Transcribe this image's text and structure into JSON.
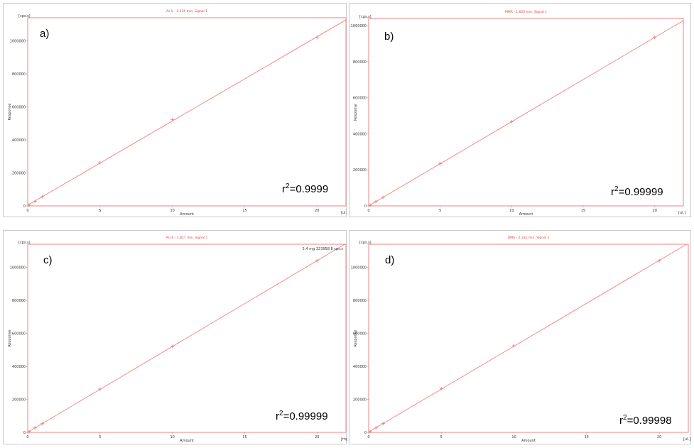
{
  "colors": {
    "plot_line": "#f08080",
    "frame": "#f08080",
    "title": "#e04040"
  },
  "chart_data": [
    {
      "type": "line",
      "panel_label": "a)",
      "title": "As V - 1.226 min, Signal 1",
      "xlabel": "Amount",
      "ylabel": "Response",
      "x_unit": "[ul.]",
      "y_unit": "[cps.s]",
      "xlim": [
        0,
        22
      ],
      "ylim": [
        0,
        1140000
      ],
      "xticks": [
        0,
        5,
        10,
        15,
        20
      ],
      "yticks": [
        0,
        200000,
        400000,
        600000,
        800000,
        1000000
      ],
      "grid": false,
      "annotation": "",
      "r2_base": "r",
      "r2_sup": "2",
      "r2_value": "=0.9999",
      "series": [
        {
          "x": [
            0.1,
            0.5,
            1,
            5,
            10,
            20
          ],
          "y": [
            5000,
            28000,
            55000,
            262000,
            523000,
            1020000
          ]
        }
      ]
    },
    {
      "type": "line",
      "panel_label": "b)",
      "title": "MMA - 1.620 min, Signal 1",
      "xlabel": "Amount",
      "ylabel": "Response",
      "x_unit": "[ul.]",
      "y_unit": "[cps.s]",
      "xlim": [
        0,
        22
      ],
      "ylim": [
        0,
        1040000
      ],
      "xticks": [
        0,
        5,
        10,
        15,
        20
      ],
      "yticks": [
        0,
        200000,
        400000,
        600000,
        800000,
        1000000
      ],
      "grid": false,
      "annotation": "",
      "r2_base": "r",
      "r2_sup": "2",
      "r2_value": "=0.99999",
      "series": [
        {
          "x": [
            0.1,
            0.5,
            1,
            5,
            10,
            20
          ],
          "y": [
            4000,
            24000,
            48000,
            234000,
            467000,
            935000
          ]
        }
      ]
    },
    {
      "type": "line",
      "panel_label": "c)",
      "title": "As III - 1.827 min, Signal 1",
      "xlabel": "Amount",
      "ylabel": "Response",
      "x_unit": "[mg]",
      "y_unit": "[cps.s]",
      "xlim": [
        0,
        22
      ],
      "ylim": [
        0,
        1140000
      ],
      "xticks": [
        0,
        5,
        10,
        15,
        20
      ],
      "yticks": [
        0,
        200000,
        400000,
        600000,
        800000,
        1000000
      ],
      "grid": false,
      "annotation": "5.4 mg  323958.8 cps.s",
      "r2_base": "r",
      "r2_sup": "2",
      "r2_value": "=0.99999",
      "series": [
        {
          "x": [
            0.1,
            0.5,
            1,
            5,
            10,
            20
          ],
          "y": [
            5000,
            27000,
            53000,
            262000,
            520000,
            1040000
          ]
        }
      ]
    },
    {
      "type": "line",
      "panel_label": "d)",
      "title": "DMA - 2.311 min, Signal 1",
      "xlabel": "Amount",
      "ylabel": "Response",
      "x_unit": "[ul.]",
      "y_unit": "[cps.s]",
      "xlim": [
        0,
        22
      ],
      "ylim": [
        0,
        1140000
      ],
      "xticks": [
        0,
        5,
        10,
        15,
        20
      ],
      "yticks": [
        0,
        200000,
        400000,
        600000,
        800000,
        1000000
      ],
      "grid": false,
      "annotation": "",
      "r2_base": "r",
      "r2_sup": "2",
      "r2_value": "=0.99998",
      "series": [
        {
          "x": [
            0.1,
            0.5,
            1,
            5,
            10,
            20
          ],
          "y": [
            5000,
            27000,
            54000,
            264000,
            525000,
            1040000
          ]
        }
      ]
    }
  ]
}
